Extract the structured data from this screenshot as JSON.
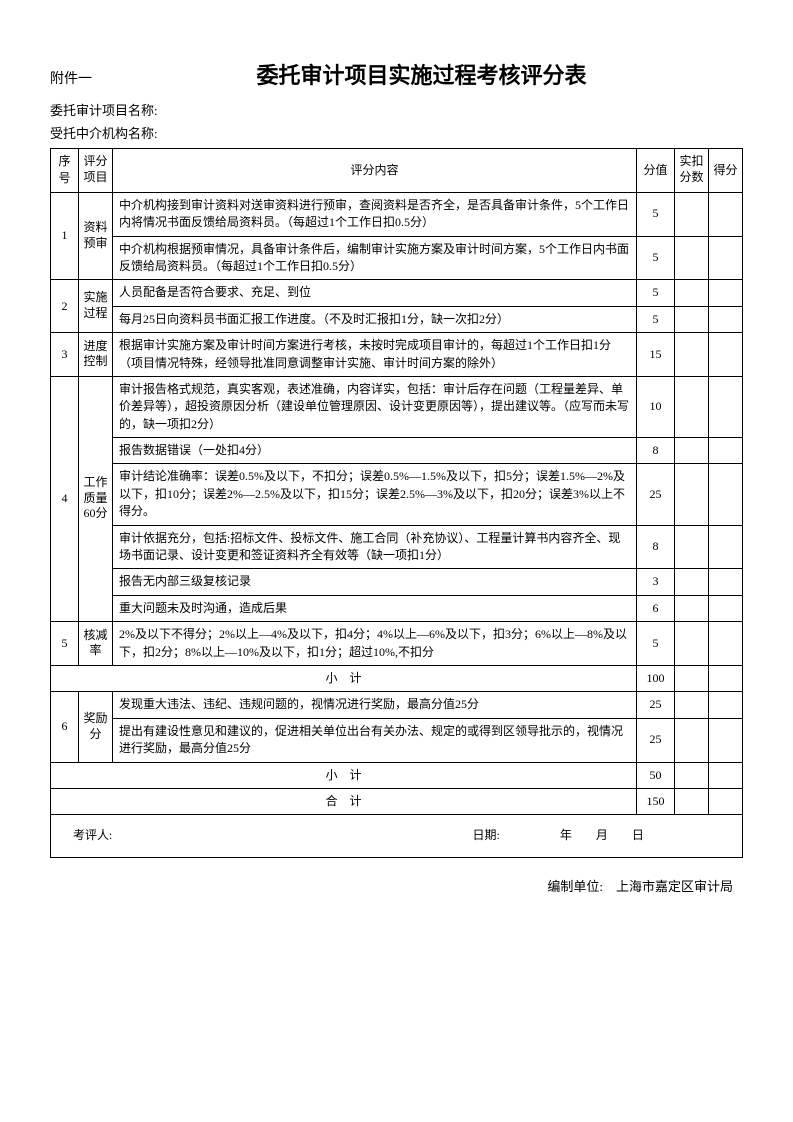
{
  "header": {
    "attachment": "附件一",
    "title": "委托审计项目实施过程考核评分表",
    "project_label": "委托审计项目名称:",
    "agency_label": "受托中介机构名称:"
  },
  "columns": {
    "seq": "序号",
    "category": "评分项目",
    "content": "评分内容",
    "score": "分值",
    "deduct": "实扣分数",
    "got": "得分"
  },
  "rows": [
    {
      "seq": "1",
      "category": "资料预审",
      "items": [
        {
          "text": "中介机构接到审计资料对送审资料进行预审，查阅资料是否齐全，是否具备审计条件，5个工作日内将情况书面反馈给局资料员。（每超过1个工作日扣0.5分）",
          "score": "5"
        },
        {
          "text": "中介机构根据预审情况，具备审计条件后，编制审计实施方案及审计时间方案，5个工作日内书面反馈给局资料员。（每超过1个工作日扣0.5分）",
          "score": "5"
        }
      ]
    },
    {
      "seq": "2",
      "category": "实施过程",
      "items": [
        {
          "text": "人员配备是否符合要求、充足、到位",
          "score": "5"
        },
        {
          "text": "每月25日向资料员书面汇报工作进度。（不及时汇报扣1分，缺一次扣2分）",
          "score": "5"
        }
      ]
    },
    {
      "seq": "3",
      "category": "进度控制",
      "items": [
        {
          "text": "根据审计实施方案及审计时间方案进行考核，未按时完成项目审计的，每超过1个工作日扣1分（项目情况特殊，经领导批准同意调整审计实施、审计时间方案的除外）",
          "score": "15"
        }
      ]
    },
    {
      "seq": "4",
      "category": "工作质量60分",
      "items": [
        {
          "text": "审计报告格式规范，真实客观，表述准确，内容详实，包括：审计后存在问题（工程量差异、单价差异等），超投资原因分析（建设单位管理原因、设计变更原因等），提出建议等。（应写而未写的，缺一项扣2分）",
          "score": "10"
        },
        {
          "text": "报告数据错误（一处扣4分）",
          "score": "8"
        },
        {
          "text": "审计结论准确率：误差0.5%及以下，不扣分；误差0.5%—1.5%及以下，扣5分；误差1.5%—2%及以下，扣10分；误差2%—2.5%及以下，扣15分；误差2.5%—3%及以下，扣20分；误差3%以上不得分。",
          "score": "25"
        },
        {
          "text": "审计依据充分，包括:招标文件、投标文件、施工合同（补充协议）、工程量计算书内容齐全、现场书面记录、设计变更和签证资料齐全有效等（缺一项扣1分）",
          "score": "8"
        },
        {
          "text": "报告无内部三级复核记录",
          "score": "3"
        },
        {
          "text": "重大问题未及时沟通，造成后果",
          "score": "6"
        }
      ]
    },
    {
      "seq": "5",
      "category": "核减率",
      "items": [
        {
          "text": "2%及以下不得分；2%以上—4%及以下，扣4分；4%以上—6%及以下，扣3分；6%以上—8%及以下，扣2分；8%以上—10%及以下，扣1分；超过10%,不扣分",
          "score": "5"
        }
      ]
    }
  ],
  "subtotal1": {
    "label": "小　计",
    "score": "100"
  },
  "bonus": {
    "seq": "6",
    "category": "奖励分",
    "items": [
      {
        "text": "发现重大违法、违纪、违规问题的，视情况进行奖励，最高分值25分",
        "score": "25"
      },
      {
        "text": "提出有建设性意见和建议的，促进相关单位出台有关办法、规定的或得到区领导批示的，视情况进行奖励，最高分值25分",
        "score": "25"
      }
    ]
  },
  "subtotal2": {
    "label": "小　计",
    "score": "50"
  },
  "total": {
    "label": "合　计",
    "score": "150"
  },
  "footer": {
    "assessor": "考评人:",
    "date_label": "日期:",
    "year": "年",
    "month": "月",
    "day": "日"
  },
  "editor": "编制单位:　上海市嘉定区审计局"
}
